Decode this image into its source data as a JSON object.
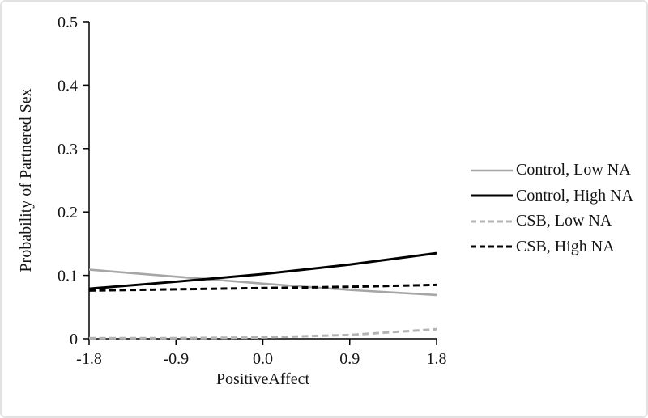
{
  "figure": {
    "background": "#ffffff",
    "border_color": "#e2e2e2"
  },
  "chart_data": {
    "type": "line",
    "x": [
      -1.8,
      -0.9,
      0.0,
      0.9,
      1.8
    ],
    "x_tick_labels": [
      "-1.8",
      "-0.9",
      "0.0",
      "0.9",
      "1.8"
    ],
    "y_ticks": [
      0,
      0.1,
      0.2,
      0.3,
      0.4,
      0.5
    ],
    "y_tick_labels": [
      "0",
      "0.1",
      "0.2",
      "0.3",
      "0.4",
      "0.5"
    ],
    "xlabel": "PositiveAffect",
    "ylabel": "Probability of Partnered Sex",
    "xlim": [
      -1.8,
      1.8
    ],
    "ylim": [
      0,
      0.5
    ],
    "grid": false,
    "legend_position": "right",
    "axis_color": "#000000",
    "series": [
      {
        "name": "Control, Low NA",
        "values": [
          0.109,
          0.098,
          0.087,
          0.077,
          0.069
        ],
        "color": "#a6a6a6",
        "style": "solid",
        "width": 2.6
      },
      {
        "name": "Control, High NA",
        "values": [
          0.079,
          0.09,
          0.102,
          0.117,
          0.135
        ],
        "color": "#000000",
        "style": "solid",
        "width": 3
      },
      {
        "name": "CSB, Low NA",
        "values": [
          0.001,
          0.001,
          0.002,
          0.006,
          0.015
        ],
        "color": "#b3b3b3",
        "style": "dashed",
        "width": 3
      },
      {
        "name": "CSB, High NA",
        "values": [
          0.076,
          0.078,
          0.08,
          0.082,
          0.085
        ],
        "color": "#000000",
        "style": "dashed",
        "width": 3
      }
    ]
  }
}
